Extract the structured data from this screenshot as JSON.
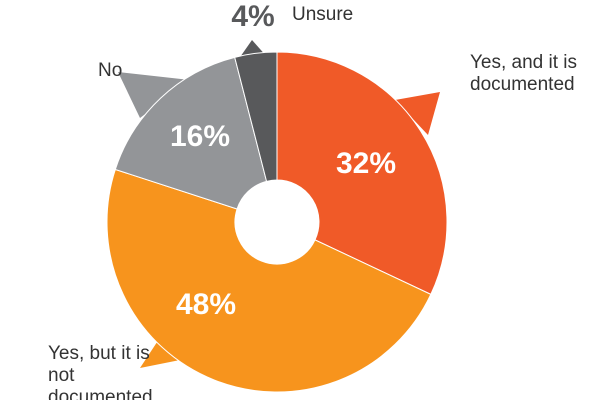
{
  "chart_data": {
    "type": "pie",
    "categories": [
      "Yes, and it is documented",
      "Yes, but it is not documented",
      "No",
      "Unsure"
    ],
    "values": [
      32,
      48,
      16,
      4
    ],
    "value_labels": [
      "32%",
      "48%",
      "16%",
      "4%"
    ],
    "colors": [
      "#f05a28",
      "#f7941d",
      "#939598",
      "#58595b"
    ]
  }
}
